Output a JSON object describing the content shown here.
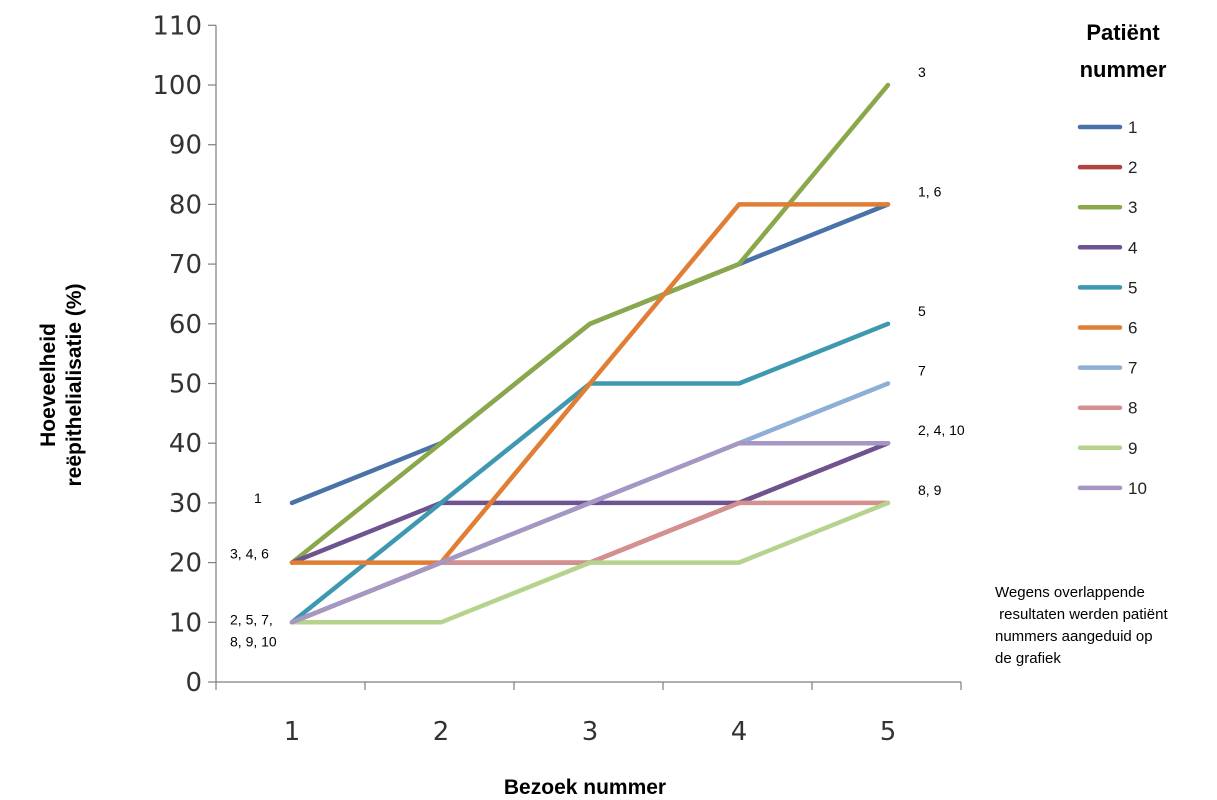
{
  "chart_data": {
    "type": "line",
    "xlabel": "Bezoek nummer",
    "ylabel_lines": [
      "Hoeveelheid",
      "reëpithelialisatie (%)"
    ],
    "categories": [
      "1",
      "2",
      "3",
      "4",
      "5"
    ],
    "ylim": [
      0,
      110
    ],
    "yticks": [
      "0",
      "10",
      "20",
      "30",
      "40",
      "50",
      "60",
      "70",
      "80",
      "90",
      "100",
      "110"
    ],
    "grid": false,
    "legend": {
      "title_lines": [
        "Patiënt",
        "nummer"
      ],
      "position": "right"
    },
    "series": [
      {
        "name": "1",
        "color": "#4a72a8",
        "values": [
          30,
          40,
          60,
          70,
          80
        ]
      },
      {
        "name": "2",
        "color": "#b0423f",
        "values": [
          10,
          20,
          20,
          30,
          40
        ]
      },
      {
        "name": "3",
        "color": "#8aa84a",
        "values": [
          20,
          40,
          60,
          70,
          100
        ]
      },
      {
        "name": "4",
        "color": "#6d5390",
        "values": [
          20,
          30,
          30,
          30,
          40
        ]
      },
      {
        "name": "5",
        "color": "#3e98af",
        "values": [
          10,
          30,
          50,
          50,
          60
        ]
      },
      {
        "name": "6",
        "color": "#e07e35",
        "values": [
          20,
          20,
          50,
          80,
          80
        ]
      },
      {
        "name": "7",
        "color": "#8faed6",
        "values": [
          10,
          20,
          30,
          40,
          50
        ]
      },
      {
        "name": "8",
        "color": "#d4908e",
        "values": [
          10,
          20,
          20,
          30,
          30
        ]
      },
      {
        "name": "9",
        "color": "#b6d38e",
        "values": [
          10,
          10,
          20,
          20,
          30
        ]
      },
      {
        "name": "10",
        "color": "#a596c2",
        "values": [
          10,
          20,
          30,
          40,
          40
        ]
      }
    ],
    "annotations": [
      {
        "lines": [
          "1"
        ],
        "x": 1,
        "y": 30,
        "side": "left"
      },
      {
        "lines": [
          "3, 4, 6"
        ],
        "x": 1,
        "y": 20,
        "side": "left"
      },
      {
        "lines": [
          "2, 5, 7,",
          "8, 9, 10"
        ],
        "x": 1,
        "y": 10,
        "side": "left"
      },
      {
        "lines": [
          "3"
        ],
        "x": 5,
        "y": 100,
        "side": "right"
      },
      {
        "lines": [
          "1, 6"
        ],
        "x": 5,
        "y": 80,
        "side": "right"
      },
      {
        "lines": [
          "5"
        ],
        "x": 5,
        "y": 60,
        "side": "right"
      },
      {
        "lines": [
          "7"
        ],
        "x": 5,
        "y": 50,
        "side": "right"
      },
      {
        "lines": [
          "2, 4, 10"
        ],
        "x": 5,
        "y": 40,
        "side": "right"
      },
      {
        "lines": [
          "8, 9"
        ],
        "x": 5,
        "y": 30,
        "side": "right"
      }
    ],
    "note_lines": [
      "Wegens overlappende",
      " resultaten werden patiënt",
      "nummers aangeduid op",
      "de grafiek"
    ]
  }
}
